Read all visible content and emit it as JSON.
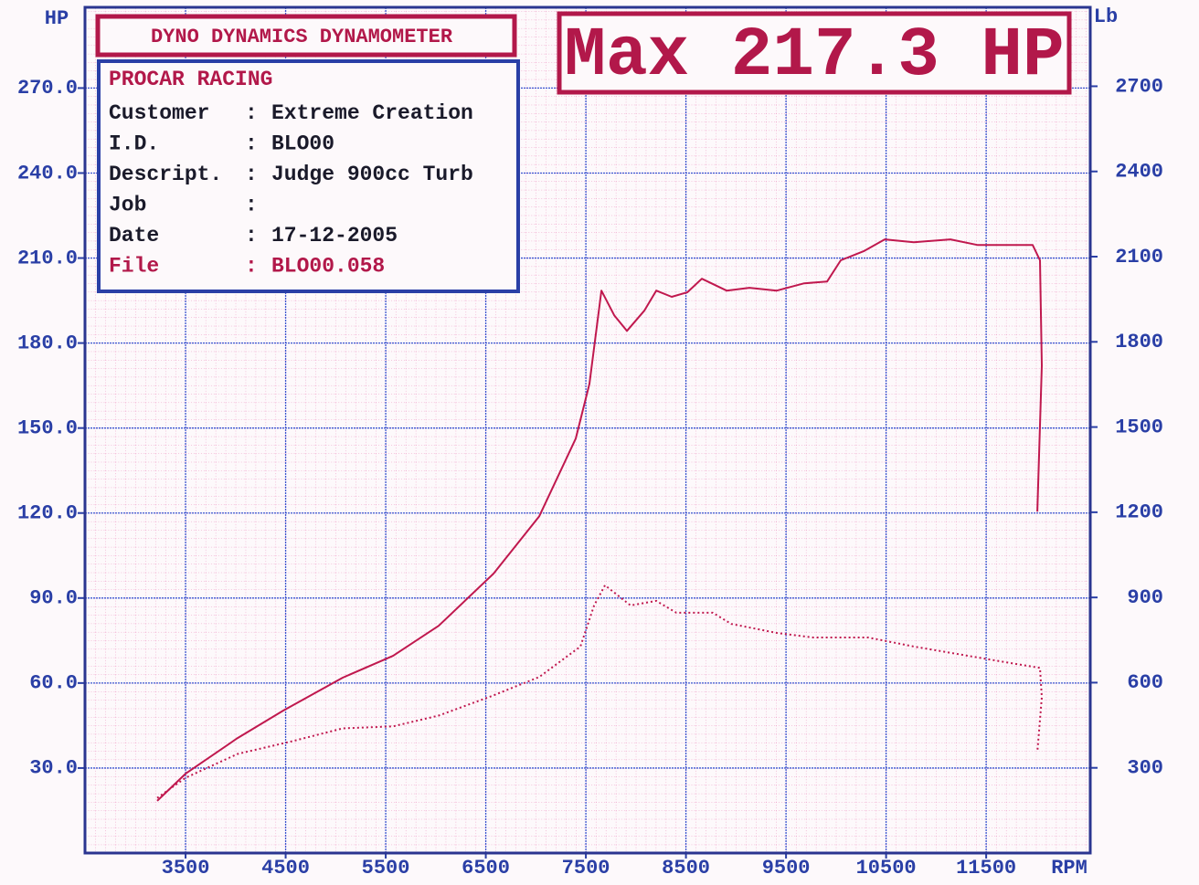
{
  "chart_data": {
    "type": "line",
    "header": "DYNO DYNAMICS DYNAMOMETER",
    "annotation": "Max 217.3 HP",
    "info": {
      "title": "PROCAR RACING",
      "rows": [
        [
          "Customer",
          ":",
          "Extreme Creation"
        ],
        [
          "I.D.",
          ":",
          "BLO00"
        ],
        [
          "Descript.",
          ":",
          "Judge 900cc Turb"
        ],
        [
          "Job",
          ":"
        ],
        [
          "Date",
          ":",
          "17-12-2005"
        ],
        [
          "File",
          ":",
          "BLO00.058"
        ]
      ]
    },
    "ylabel": "HP",
    "y2label": "Lb",
    "xlabel": "RPM",
    "xlim": [
      2495,
      12540
    ],
    "ylim": [
      0,
      298.5
    ],
    "y2lim": [
      0,
      2978
    ],
    "xticks": [
      3500,
      4500,
      5500,
      6500,
      7500,
      8500,
      9500,
      10500,
      11500
    ],
    "yticks": [
      {
        "value": 30,
        "label": "30.0"
      },
      {
        "value": 60,
        "label": "60.0"
      },
      {
        "value": 90,
        "label": "90.0"
      },
      {
        "value": 120,
        "label": "120.0"
      },
      {
        "value": 150,
        "label": "150.0"
      },
      {
        "value": 180,
        "label": "180.0"
      },
      {
        "value": 210,
        "label": "210.0"
      },
      {
        "value": 240,
        "label": "240.0"
      },
      {
        "value": 270,
        "label": "270.0"
      }
    ],
    "y2ticks": [
      300,
      600,
      900,
      1200,
      1500,
      1800,
      2100,
      2400,
      2700
    ],
    "grid": true,
    "series": [
      {
        "color": "#c0184e",
        "style": "solid",
        "x": [
          3216,
          3500,
          4020,
          4477,
          5070,
          5573,
          6029,
          6577,
          7034,
          7399,
          7536,
          7655,
          7783,
          7910,
          8084,
          8203,
          8358,
          8513,
          8659,
          8906,
          9134,
          9408,
          9682,
          9910,
          10047,
          10275,
          10486,
          10778,
          11143,
          11417,
          11691,
          11965,
          12038,
          12056,
          12011
        ],
        "values": [
          18.4,
          28,
          40.6,
          50.3,
          61.9,
          69.6,
          80.2,
          98.6,
          118.9,
          146.3,
          165.6,
          198.5,
          189.8,
          184.3,
          191.4,
          198.5,
          196.3,
          197.9,
          202.7,
          198.5,
          199.5,
          198.5,
          201.1,
          201.7,
          209.2,
          212.4,
          216.6,
          215.6,
          216.6,
          214.6,
          214.6,
          214.6,
          209.2,
          172,
          120.5
        ]
      },
      {
        "color": "#c0184e",
        "style": "dotted",
        "axis": "y2",
        "x": [
          3216,
          3500,
          4020,
          4569,
          5070,
          5573,
          6029,
          6577,
          7034,
          7445,
          7582,
          7691,
          7947,
          8203,
          8404,
          8769,
          8952,
          9408,
          9773,
          10320,
          10778,
          11326,
          11691,
          12038,
          12056,
          12011
        ],
        "values": [
          194,
          265,
          349,
          394,
          439,
          446,
          484,
          555,
          620,
          727,
          872,
          943,
          872,
          888,
          846,
          846,
          807,
          775,
          759,
          759,
          727,
          694,
          672,
          652,
          549,
          355
        ]
      }
    ]
  }
}
